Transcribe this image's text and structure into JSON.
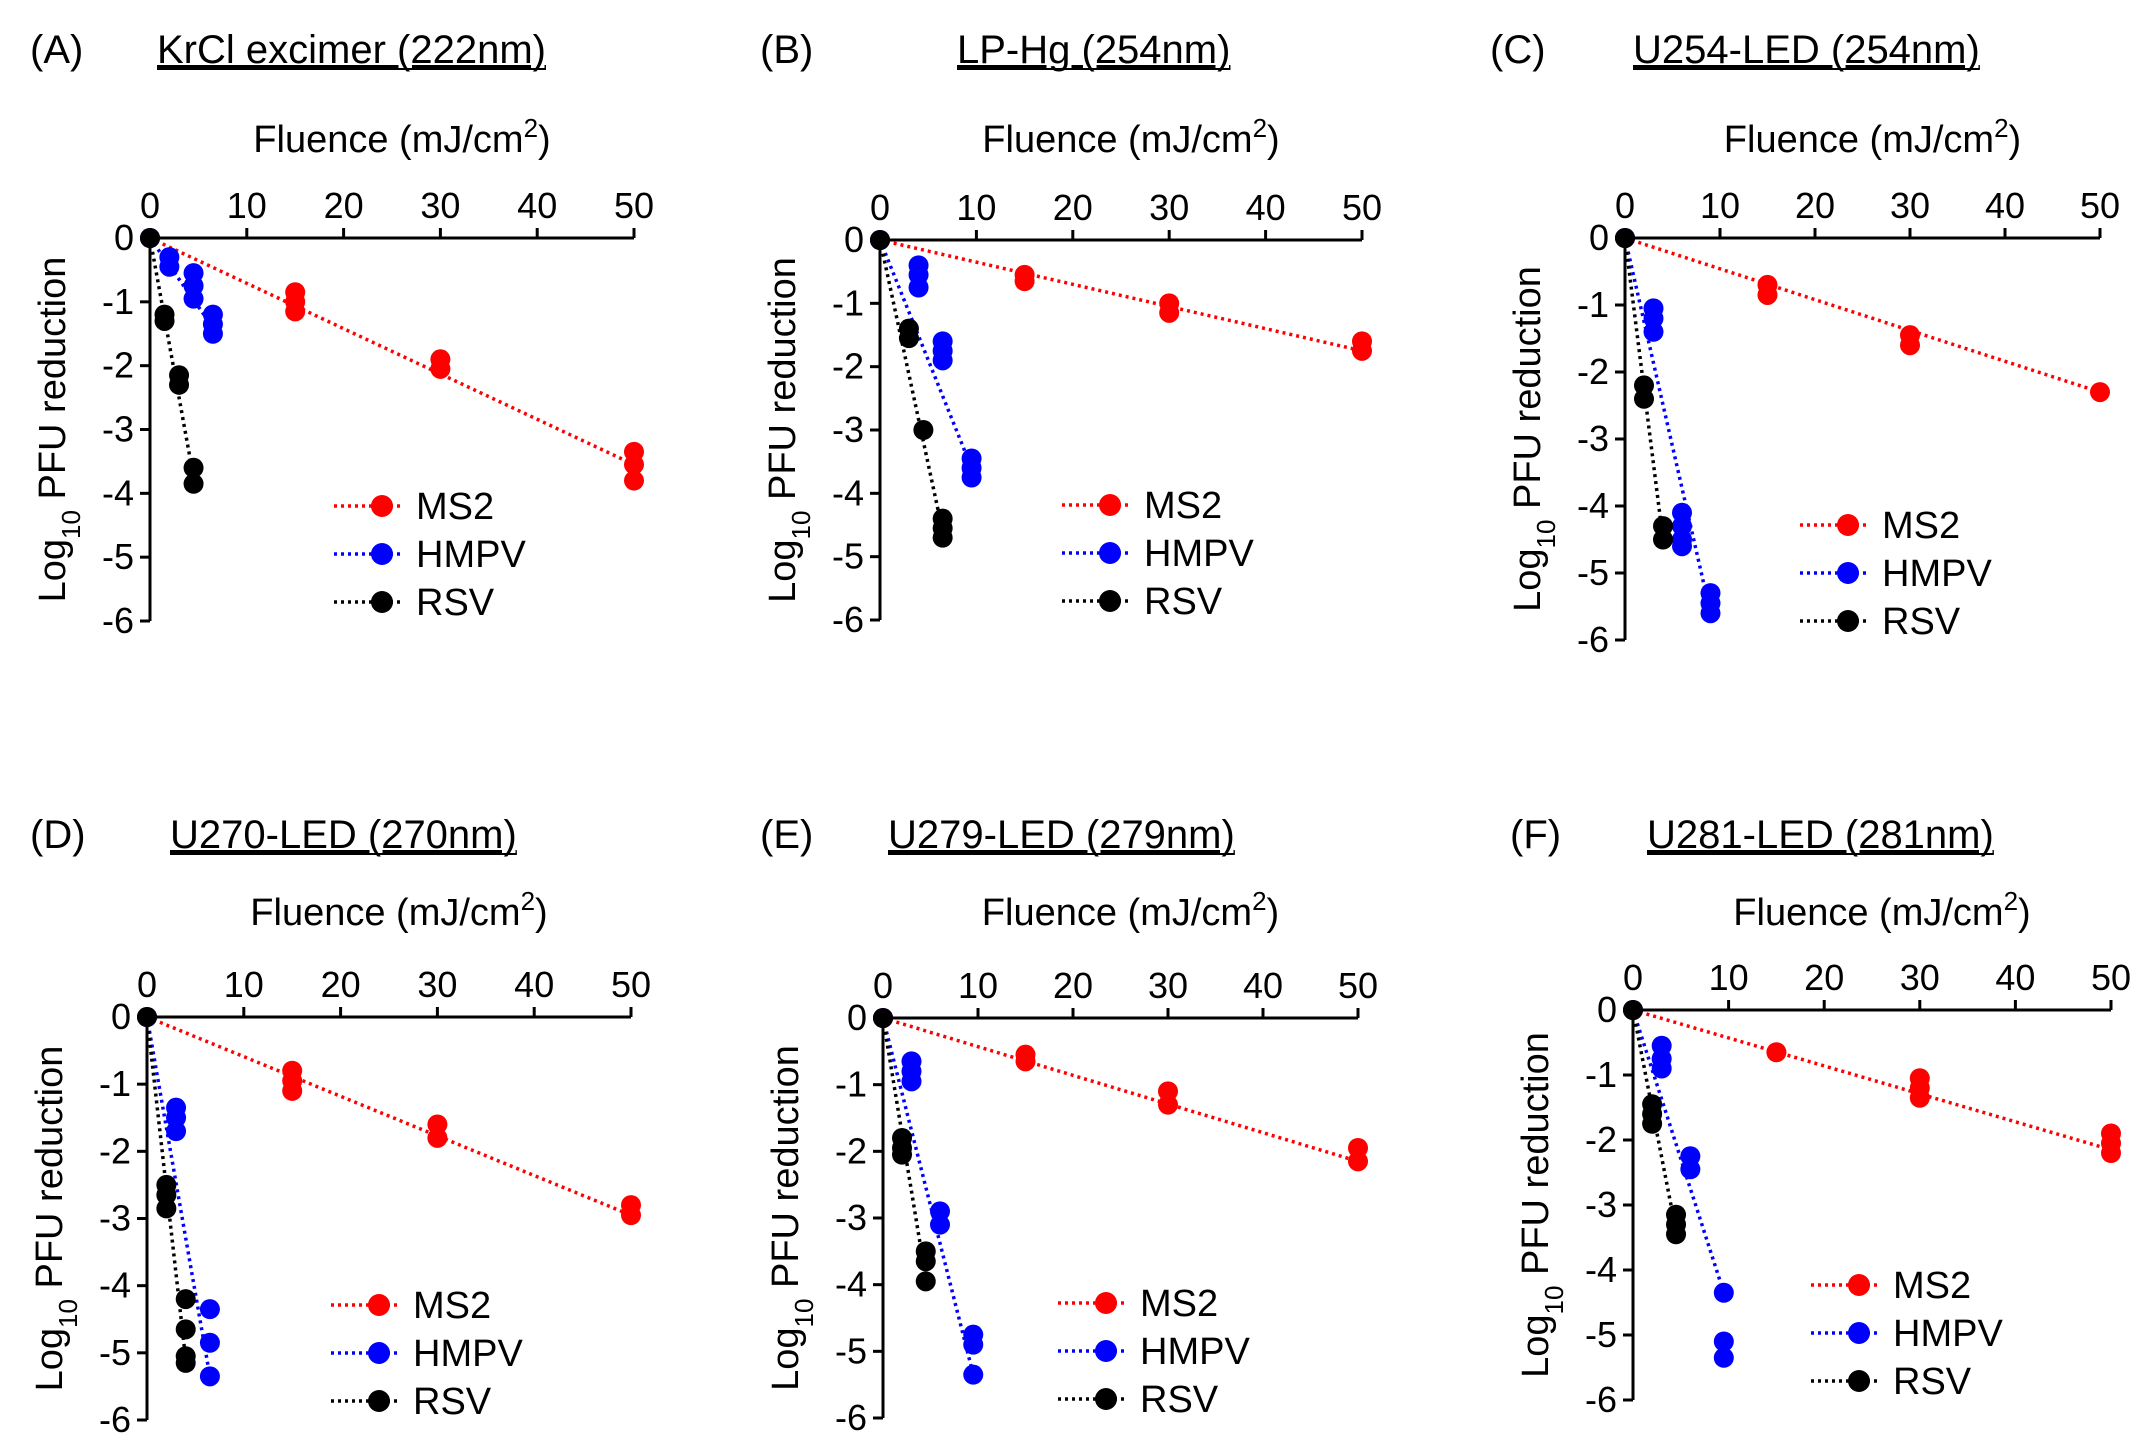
{
  "chart_data": [
    {
      "type": "scatter",
      "panel": "(A)",
      "title": "KrCl excimer (222nm)",
      "xlabel": {
        "main": "Fluence (mJ/cm",
        "sup": "2",
        "tail": ")"
      },
      "ylabel": {
        "main": "Log",
        "sub": "10",
        "tail": " PFU reduction"
      },
      "xlim": [
        0,
        50
      ],
      "ylim": [
        -6,
        0
      ],
      "xticks": [
        "0",
        "10",
        "20",
        "30",
        "40",
        "50"
      ],
      "yticks": [
        "0",
        "-1",
        "-2",
        "-3",
        "-4",
        "-5",
        "-6"
      ],
      "legend": [
        "MS2",
        "HMPV",
        "RSV"
      ],
      "series": [
        {
          "name": "MS2",
          "color": "#ff0000",
          "line_to": [
            50,
            -3.55
          ],
          "points": [
            [
              0,
              0
            ],
            [
              15,
              -0.85
            ],
            [
              15,
              -1.0
            ],
            [
              15,
              -1.15
            ],
            [
              30,
              -1.9
            ],
            [
              30,
              -2.05
            ],
            [
              50,
              -3.35
            ],
            [
              50,
              -3.55
            ],
            [
              50,
              -3.8
            ]
          ]
        },
        {
          "name": "HMPV",
          "color": "#0000ff",
          "line_to": [
            6.5,
            -1.4
          ],
          "points": [
            [
              0,
              0
            ],
            [
              2,
              -0.3
            ],
            [
              2,
              -0.45
            ],
            [
              4.5,
              -0.55
            ],
            [
              4.5,
              -0.75
            ],
            [
              4.5,
              -0.95
            ],
            [
              6.5,
              -1.2
            ],
            [
              6.5,
              -1.35
            ],
            [
              6.5,
              -1.5
            ]
          ]
        },
        {
          "name": "RSV",
          "color": "#000000",
          "line_to": [
            4.5,
            -3.75
          ],
          "points": [
            [
              0,
              0
            ],
            [
              1.5,
              -1.2
            ],
            [
              1.5,
              -1.3
            ],
            [
              3,
              -2.15
            ],
            [
              3,
              -2.3
            ],
            [
              4.5,
              -3.6
            ],
            [
              4.5,
              -3.85
            ]
          ]
        }
      ]
    },
    {
      "type": "scatter",
      "panel": "(B)",
      "title": "LP-Hg (254nm)",
      "xlabel": {
        "main": "Fluence (mJ/cm",
        "sup": "2",
        "tail": ")"
      },
      "ylabel": {
        "main": "Log",
        "sub": "10",
        "tail": " PFU reduction"
      },
      "xlim": [
        0,
        50
      ],
      "ylim": [
        -6,
        0
      ],
      "xticks": [
        "0",
        "10",
        "20",
        "30",
        "40",
        "50"
      ],
      "yticks": [
        "0",
        "-1",
        "-2",
        "-3",
        "-4",
        "-5",
        "-6"
      ],
      "legend": [
        "MS2",
        "HMPV",
        "RSV"
      ],
      "series": [
        {
          "name": "MS2",
          "color": "#ff0000",
          "line_to": [
            50,
            -1.75
          ],
          "points": [
            [
              0,
              0
            ],
            [
              15,
              -0.55
            ],
            [
              15,
              -0.65
            ],
            [
              30,
              -1.0
            ],
            [
              30,
              -1.15
            ],
            [
              50,
              -1.6
            ],
            [
              50,
              -1.75
            ]
          ]
        },
        {
          "name": "HMPV",
          "color": "#0000ff",
          "line_to": [
            9.5,
            -3.6
          ],
          "points": [
            [
              0,
              0
            ],
            [
              4,
              -0.4
            ],
            [
              4,
              -0.55
            ],
            [
              4,
              -0.75
            ],
            [
              6.5,
              -1.6
            ],
            [
              6.5,
              -1.75
            ],
            [
              6.5,
              -1.9
            ],
            [
              9.5,
              -3.45
            ],
            [
              9.5,
              -3.6
            ],
            [
              9.5,
              -3.75
            ]
          ]
        },
        {
          "name": "RSV",
          "color": "#000000",
          "line_to": [
            6.5,
            -4.6
          ],
          "points": [
            [
              0,
              0
            ],
            [
              3,
              -1.4
            ],
            [
              3,
              -1.55
            ],
            [
              4.5,
              -3.0
            ],
            [
              6.5,
              -4.4
            ],
            [
              6.5,
              -4.55
            ],
            [
              6.5,
              -4.7
            ]
          ]
        }
      ]
    },
    {
      "type": "scatter",
      "panel": "(C)",
      "title": "U254-LED (254nm)",
      "xlabel": {
        "main": "Fluence (mJ/cm",
        "sup": "2",
        "tail": ")"
      },
      "ylabel": {
        "main": "Log",
        "sub": "10",
        "tail": " PFU reduction"
      },
      "xlim": [
        0,
        50
      ],
      "ylim": [
        -6,
        0
      ],
      "xticks": [
        "0",
        "10",
        "20",
        "30",
        "40",
        "50"
      ],
      "yticks": [
        "0",
        "-1",
        "-2",
        "-3",
        "-4",
        "-5",
        "-6"
      ],
      "legend": [
        "MS2",
        "HMPV",
        "RSV"
      ],
      "series": [
        {
          "name": "MS2",
          "color": "#ff0000",
          "line_to": [
            50,
            -2.3
          ],
          "points": [
            [
              0,
              0
            ],
            [
              15,
              -0.7
            ],
            [
              15,
              -0.85
            ],
            [
              30,
              -1.45
            ],
            [
              30,
              -1.6
            ],
            [
              50,
              -2.3
            ]
          ]
        },
        {
          "name": "HMPV",
          "color": "#0000ff",
          "line_to": [
            9,
            -5.6
          ],
          "points": [
            [
              0,
              0
            ],
            [
              3,
              -1.05
            ],
            [
              3,
              -1.2
            ],
            [
              3,
              -1.4
            ],
            [
              6,
              -4.1
            ],
            [
              6,
              -4.3
            ],
            [
              6,
              -4.5
            ],
            [
              6,
              -4.6
            ],
            [
              9,
              -5.3
            ],
            [
              9,
              -5.45
            ],
            [
              9,
              -5.6
            ]
          ]
        },
        {
          "name": "RSV",
          "color": "#000000",
          "line_to": [
            4,
            -4.5
          ],
          "points": [
            [
              0,
              0
            ],
            [
              2,
              -2.2
            ],
            [
              2,
              -2.4
            ],
            [
              4,
              -4.3
            ],
            [
              4,
              -4.5
            ]
          ]
        }
      ]
    },
    {
      "type": "scatter",
      "panel": "(D)",
      "title": "U270-LED (270nm)",
      "xlabel": {
        "main": "Fluence (mJ/cm",
        "sup": "2",
        "tail": ")"
      },
      "ylabel": {
        "main": "Log",
        "sub": "10",
        "tail": " PFU reduction"
      },
      "xlim": [
        0,
        50
      ],
      "ylim": [
        -6,
        0
      ],
      "xticks": [
        "0",
        "10",
        "20",
        "30",
        "40",
        "50"
      ],
      "yticks": [
        "0",
        "-1",
        "-2",
        "-3",
        "-4",
        "-5",
        "-6"
      ],
      "legend": [
        "MS2",
        "HMPV",
        "RSV"
      ],
      "series": [
        {
          "name": "MS2",
          "color": "#ff0000",
          "line_to": [
            50,
            -2.95
          ],
          "points": [
            [
              0,
              0
            ],
            [
              15,
              -0.8
            ],
            [
              15,
              -0.95
            ],
            [
              15,
              -1.1
            ],
            [
              30,
              -1.6
            ],
            [
              30,
              -1.8
            ],
            [
              50,
              -2.8
            ],
            [
              50,
              -2.95
            ]
          ]
        },
        {
          "name": "HMPV",
          "color": "#0000ff",
          "line_to": [
            6.5,
            -5.35
          ],
          "points": [
            [
              0,
              0
            ],
            [
              3,
              -1.35
            ],
            [
              3,
              -1.5
            ],
            [
              3,
              -1.7
            ],
            [
              6.5,
              -4.35
            ],
            [
              6.5,
              -4.85
            ],
            [
              6.5,
              -5.35
            ]
          ]
        },
        {
          "name": "RSV",
          "color": "#000000",
          "line_to": [
            4,
            -5.1
          ],
          "points": [
            [
              0,
              0
            ],
            [
              2,
              -2.5
            ],
            [
              2,
              -2.65
            ],
            [
              2,
              -2.85
            ],
            [
              4,
              -4.2
            ],
            [
              4,
              -4.65
            ],
            [
              4,
              -5.05
            ],
            [
              4,
              -5.15
            ]
          ]
        }
      ]
    },
    {
      "type": "scatter",
      "panel": "(E)",
      "title": "U279-LED (279nm)",
      "xlabel": {
        "main": "Fluence (mJ/cm",
        "sup": "2",
        "tail": ")"
      },
      "ylabel": {
        "main": "Log",
        "sub": "10",
        "tail": " PFU reduction"
      },
      "xlim": [
        0,
        50
      ],
      "ylim": [
        -6,
        0
      ],
      "xticks": [
        "0",
        "10",
        "20",
        "30",
        "40",
        "50"
      ],
      "yticks": [
        "0",
        "-1",
        "-2",
        "-3",
        "-4",
        "-5",
        "-6"
      ],
      "legend": [
        "MS2",
        "HMPV",
        "RSV"
      ],
      "series": [
        {
          "name": "MS2",
          "color": "#ff0000",
          "line_to": [
            50,
            -2.15
          ],
          "points": [
            [
              0,
              0
            ],
            [
              15,
              -0.55
            ],
            [
              15,
              -0.65
            ],
            [
              30,
              -1.1
            ],
            [
              30,
              -1.3
            ],
            [
              50,
              -1.95
            ],
            [
              50,
              -2.15
            ]
          ]
        },
        {
          "name": "HMPV",
          "color": "#0000ff",
          "line_to": [
            9.5,
            -5.35
          ],
          "points": [
            [
              0,
              0
            ],
            [
              3,
              -0.65
            ],
            [
              3,
              -0.8
            ],
            [
              3,
              -0.95
            ],
            [
              6,
              -2.9
            ],
            [
              6,
              -3.1
            ],
            [
              9.5,
              -4.75
            ],
            [
              9.5,
              -4.9
            ],
            [
              9.5,
              -5.35
            ]
          ]
        },
        {
          "name": "RSV",
          "color": "#000000",
          "line_to": [
            4.5,
            -3.9
          ],
          "points": [
            [
              0,
              0
            ],
            [
              2,
              -1.8
            ],
            [
              2,
              -1.95
            ],
            [
              2,
              -2.05
            ],
            [
              4.5,
              -3.5
            ],
            [
              4.5,
              -3.65
            ],
            [
              4.5,
              -3.95
            ]
          ]
        }
      ]
    },
    {
      "type": "scatter",
      "panel": "(F)",
      "title": "U281-LED (281nm)",
      "xlabel": {
        "main": "Fluence (mJ/cm",
        "sup": "2",
        "tail": ")"
      },
      "ylabel": {
        "main": "Log",
        "sub": "10",
        "tail": " PFU reduction"
      },
      "xlim": [
        0,
        50
      ],
      "ylim": [
        -6,
        0
      ],
      "xticks": [
        "0",
        "10",
        "20",
        "30",
        "40",
        "50"
      ],
      "yticks": [
        "0",
        "-1",
        "-2",
        "-3",
        "-4",
        "-5",
        "-6"
      ],
      "legend": [
        "MS2",
        "HMPV",
        "RSV"
      ],
      "series": [
        {
          "name": "MS2",
          "color": "#ff0000",
          "line_to": [
            50,
            -2.15
          ],
          "points": [
            [
              0,
              0
            ],
            [
              15,
              -0.65
            ],
            [
              30,
              -1.05
            ],
            [
              30,
              -1.2
            ],
            [
              30,
              -1.35
            ],
            [
              50,
              -1.9
            ],
            [
              50,
              -2.05
            ],
            [
              50,
              -2.2
            ]
          ]
        },
        {
          "name": "HMPV",
          "color": "#0000ff",
          "line_to": [
            9.5,
            -4.35
          ],
          "points": [
            [
              0,
              0
            ],
            [
              3,
              -0.55
            ],
            [
              3,
              -0.75
            ],
            [
              3,
              -0.9
            ],
            [
              6,
              -2.25
            ],
            [
              6,
              -2.45
            ],
            [
              9.5,
              -4.35
            ],
            [
              9.5,
              -5.1
            ],
            [
              9.5,
              -5.35
            ]
          ]
        },
        {
          "name": "RSV",
          "color": "#000000",
          "line_to": [
            4.5,
            -3.4
          ],
          "points": [
            [
              0,
              0
            ],
            [
              2,
              -1.45
            ],
            [
              2,
              -1.6
            ],
            [
              2,
              -1.75
            ],
            [
              4.5,
              -3.15
            ],
            [
              4.5,
              -3.3
            ],
            [
              4.5,
              -3.45
            ]
          ]
        }
      ]
    }
  ]
}
